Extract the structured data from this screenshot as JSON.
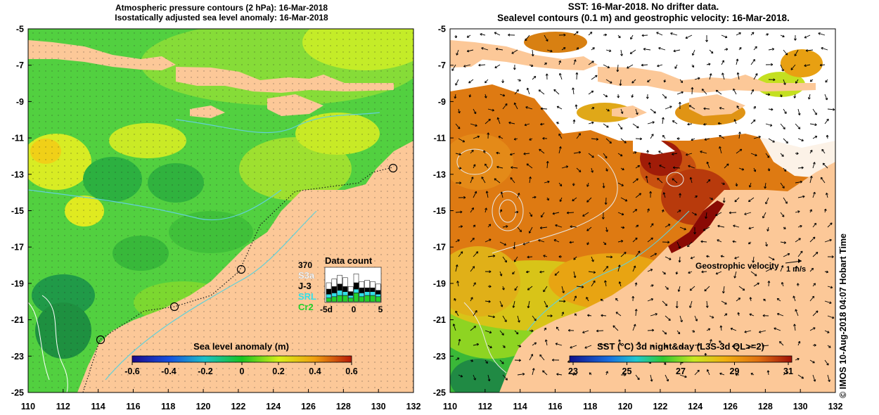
{
  "left_panel": {
    "title_line1": "Atmospheric pressure contours (2 hPa): 16-Mar-2018",
    "title_line2": "Isostatically adjusted sea level anomaly: 16-Mar-2018",
    "y_ticks": [
      "-5",
      "-7",
      "-9",
      "-11",
      "-13",
      "-15",
      "-17",
      "-19",
      "-21",
      "-23",
      "-25"
    ],
    "x_ticks": [
      "110",
      "112",
      "114",
      "116",
      "118",
      "120",
      "122",
      "124",
      "126",
      "128",
      "130",
      "132"
    ],
    "colorbar": {
      "label": "Sea level anomaly (m)",
      "ticks": [
        "-0.6",
        "-0.4",
        "-0.2",
        "0",
        "0.2",
        "0.4",
        "0.6"
      ]
    },
    "data_count": {
      "title": "Data count",
      "max": "370",
      "missions": [
        {
          "name": "S3a",
          "color": "#ffffff"
        },
        {
          "name": "J-3",
          "color": "#000000"
        },
        {
          "name": "SRL",
          "color": "#33e0e8"
        },
        {
          "name": "Cr2",
          "color": "#22d02a"
        }
      ],
      "axis_ticks": [
        "-5d",
        "0",
        "5"
      ]
    },
    "colors": {
      "land": "#fcc898",
      "coast_line": "#62d0d8",
      "track": "#1a1a1a"
    }
  },
  "right_panel": {
    "title_line1": "SST: 16-Mar-2018. No drifter data.",
    "title_line2": "Sealevel contours (0.1 m) and geostrophic velocity: 16-Mar-2018.",
    "y_ticks": [
      "-5",
      "-7",
      "-9",
      "-11",
      "-13",
      "-15",
      "-17",
      "-19",
      "-21",
      "-23",
      "-25"
    ],
    "x_ticks": [
      "110",
      "112",
      "114",
      "116",
      "118",
      "120",
      "122",
      "124",
      "126",
      "128",
      "130",
      "132"
    ],
    "velocity_label": "Geostrophic velocity",
    "velocity_scale": "1 m/s",
    "colorbar": {
      "label": "SST (°C) 3d night&day (L3S-3d QL>=2)",
      "ticks": [
        "23",
        "25",
        "27",
        "29",
        "31"
      ]
    },
    "colors": {
      "land": "#fcc898",
      "sst_main": "#de7a12",
      "cloud": "#ffffff"
    }
  },
  "credit": "© IMOS 10-Aug-2018 04:07 Hobart Time"
}
